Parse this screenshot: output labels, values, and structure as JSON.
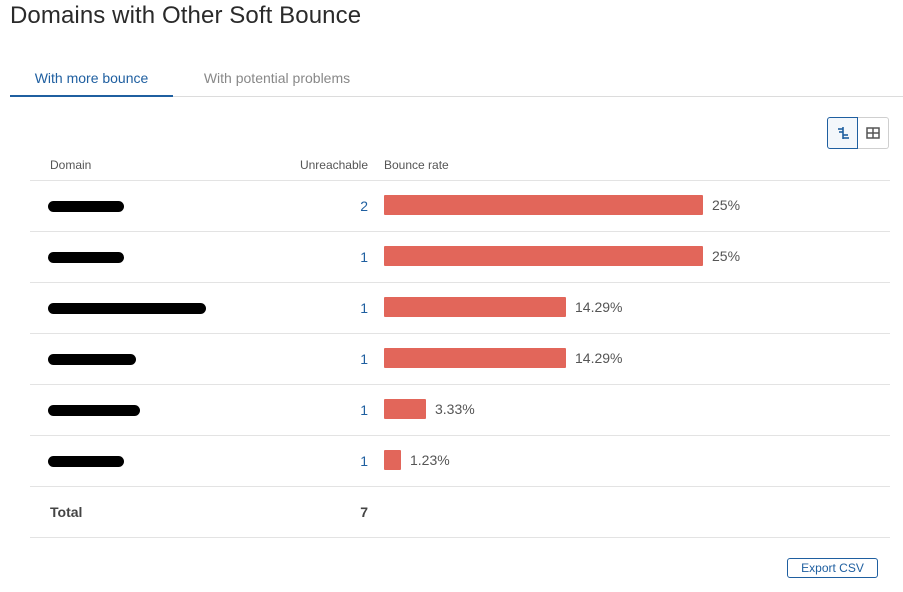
{
  "page": {
    "title": "Domains with Other Soft Bounce"
  },
  "tabs": [
    {
      "label": "With more bounce",
      "active": true
    },
    {
      "label": "With potential problems",
      "active": false
    }
  ],
  "view_toggle": [
    {
      "icon": "bar-chart-icon",
      "active": true
    },
    {
      "icon": "table-grid-icon",
      "active": false
    }
  ],
  "table": {
    "headers": {
      "domain": "Domain",
      "unreachable": "Unreachable",
      "bounce_rate": "Bounce rate"
    },
    "rows": [
      {
        "domain": "[redacted]",
        "unreachable": "2",
        "bounce_rate_label": "25%",
        "bounce_rate": 25
      },
      {
        "domain": "[redacted]",
        "unreachable": "1",
        "bounce_rate_label": "25%",
        "bounce_rate": 25
      },
      {
        "domain": "[redacted]",
        "unreachable": "1",
        "bounce_rate_label": "14.29%",
        "bounce_rate": 14.29
      },
      {
        "domain": "[redacted]",
        "unreachable": "1",
        "bounce_rate_label": "14.29%",
        "bounce_rate": 14.29
      },
      {
        "domain": "[redacted]",
        "unreachable": "1",
        "bounce_rate_label": "3.33%",
        "bounce_rate": 3.33
      },
      {
        "domain": "[redacted]",
        "unreachable": "1",
        "bounce_rate_label": "1.23%",
        "bounce_rate": 1.23
      }
    ],
    "total": {
      "label": "Total",
      "value": "7"
    }
  },
  "export": {
    "label": "Export CSV"
  },
  "colors": {
    "accent": "#1f5fa0",
    "bar": "#e2665a"
  }
}
